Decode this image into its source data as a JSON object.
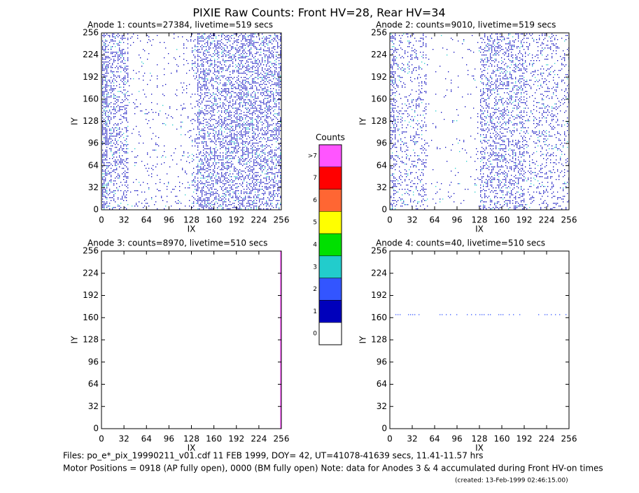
{
  "title": "PIXIE Raw Counts:  Front HV=28, Rear HV=34",
  "chart_data": [
    {
      "type": "heatmap",
      "title": "Anode 1: counts=27384, livetime=519 secs",
      "xlabel": "IX",
      "ylabel": "IY",
      "xlim": [
        0,
        256
      ],
      "ylim": [
        0,
        256
      ],
      "xticks": [
        0,
        32,
        64,
        96,
        128,
        160,
        192,
        224,
        256
      ],
      "yticks": [
        0,
        32,
        64,
        96,
        128,
        160,
        192,
        224,
        256
      ]
    },
    {
      "type": "heatmap",
      "title": "Anode 2: counts=9010, livetime=519 secs",
      "xlabel": "IX",
      "ylabel": "IY",
      "xlim": [
        0,
        256
      ],
      "ylim": [
        0,
        256
      ],
      "xticks": [
        0,
        32,
        64,
        96,
        128,
        160,
        192,
        224,
        256
      ],
      "yticks": [
        0,
        32,
        64,
        96,
        128,
        160,
        192,
        224,
        256
      ]
    },
    {
      "type": "heatmap",
      "title": "Anode 3: counts=8970, livetime=510 secs",
      "xlabel": "IX",
      "ylabel": "IY",
      "xlim": [
        0,
        256
      ],
      "ylim": [
        0,
        256
      ],
      "xticks": [
        0,
        32,
        64,
        96,
        128,
        160,
        192,
        224,
        256
      ],
      "yticks": [
        0,
        32,
        64,
        96,
        128,
        160,
        192,
        224,
        256
      ]
    },
    {
      "type": "heatmap",
      "title": "Anode 4: counts=40, livetime=510 secs",
      "xlabel": "IX",
      "ylabel": "IY",
      "xlim": [
        0,
        256
      ],
      "ylim": [
        0,
        256
      ],
      "xticks": [
        0,
        32,
        64,
        96,
        128,
        160,
        192,
        224,
        256
      ],
      "yticks": [
        0,
        32,
        64,
        96,
        128,
        160,
        192,
        224,
        256
      ]
    }
  ],
  "colorbar": {
    "title": "Counts",
    "labels": [
      ">7",
      "7",
      "6",
      "5",
      "4",
      "3",
      "2",
      "1",
      "0"
    ],
    "colors": [
      "#ff55ff",
      "#ff0000",
      "#ff6633",
      "#ffff00",
      "#00e000",
      "#22cccc",
      "#3355ff",
      "#0000bb",
      "#ffffff"
    ]
  },
  "footer": {
    "files": "Files: po_e*_pix_19990211_v01.cdf    11 FEB 1999, DOY= 42, UT=41078-41639 secs, 11.41-11.57 hrs",
    "motor": "Motor Positions = 0918 (AP fully open), 0000 (BM fully open)    Note: data for Anodes 3 & 4 accumulated during Front HV-on times",
    "created": "(created: 13-Feb-1999 02:46:15.00)"
  }
}
